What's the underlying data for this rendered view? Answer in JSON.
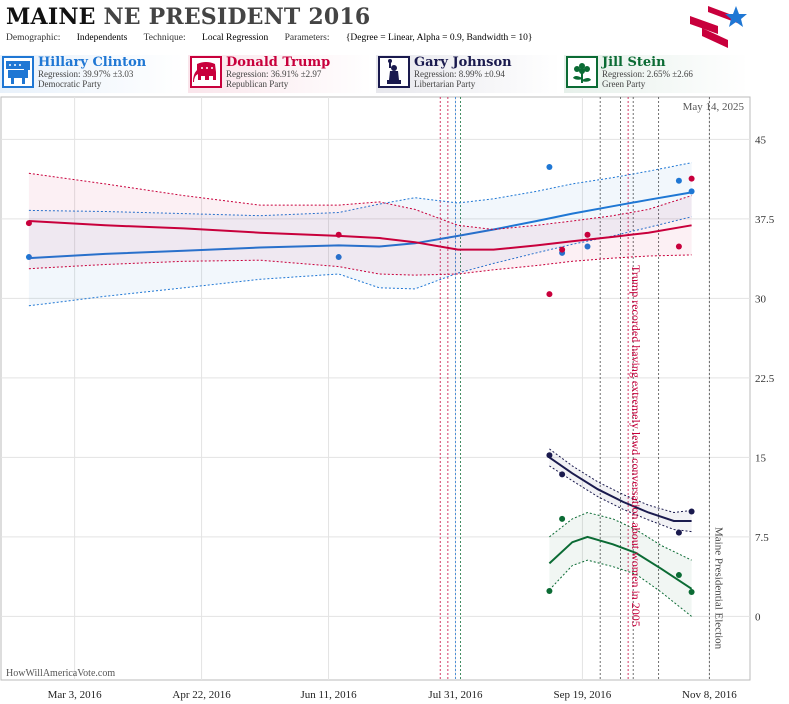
{
  "header": {
    "state": "MAINE",
    "title_rest": "NE PRESIDENT 2016",
    "demographic_label": "Demographic:",
    "demographic": "Independents",
    "technique_label": "Technique:",
    "technique": "Local Regression",
    "parameters_label": "Parameters:",
    "parameters": "{Degree = Linear, Alpha = 0.9, Bandwidth = 10}"
  },
  "candidates": [
    {
      "name": "Hillary Clinton",
      "regression": "Regression: 39.97% ±3.03",
      "party": "Democratic Party",
      "color": "#1f77d4",
      "icon": "donkey-icon"
    },
    {
      "name": "Donald Trump",
      "regression": "Regression: 36.91% ±2.97",
      "party": "Republican Party",
      "color": "#c8003c",
      "icon": "elephant-icon"
    },
    {
      "name": "Gary Johnson",
      "regression": "Regression: 8.99% ±0.94",
      "party": "Libertarian Party",
      "color": "#1a1a4e",
      "icon": "statue-of-liberty-icon"
    },
    {
      "name": "Jill Stein",
      "regression": "Regression: 2.65% ±2.66",
      "party": "Green Party",
      "color": "#0b6b34",
      "icon": "flower-icon"
    }
  ],
  "date_stamp": "May 14, 2025",
  "watermark": "HowWillAmericaVote.com",
  "chart_data": {
    "type": "line",
    "x_ticks": [
      "Mar 3, 2016",
      "Apr 22, 2016",
      "Jun 11, 2016",
      "Jul 31, 2016",
      "Sep 19, 2016",
      "Nov 8, 2016"
    ],
    "x_range": [
      "2016-02-03",
      "2016-11-24"
    ],
    "y_ticks": [
      "0",
      "7.5",
      "15",
      "22.5",
      "30",
      "37.5",
      "45"
    ],
    "ylim": [
      -6,
      49
    ],
    "annotations": [
      {
        "text": "Trump recorded having extremely lewd conversation about women in 2005",
        "date": "2016-10-07",
        "color": "#c8003c"
      },
      {
        "text": "Maine Presidential Election",
        "date": "2016-11-08",
        "color": "#444444"
      }
    ],
    "event_lines": [
      {
        "date": "2016-07-25",
        "color": "#c8003c"
      },
      {
        "date": "2016-07-28",
        "color": "#c8003c"
      },
      {
        "date": "2016-07-31",
        "color": "#1f77d4"
      },
      {
        "date": "2016-08-02",
        "color": "#0b6b34"
      },
      {
        "date": "2016-09-26",
        "color": "#444444"
      },
      {
        "date": "2016-10-04",
        "color": "#444444"
      },
      {
        "date": "2016-10-07",
        "color": "#c8003c"
      },
      {
        "date": "2016-10-09",
        "color": "#444444"
      },
      {
        "date": "2016-10-19",
        "color": "#444444"
      },
      {
        "date": "2016-11-08",
        "color": "#444444"
      }
    ],
    "series": [
      {
        "name": "Hillary Clinton",
        "color": "#1f77d4",
        "x": [
          "2016-02-14",
          "2016-03-15",
          "2016-04-15",
          "2016-05-15",
          "2016-06-15",
          "2016-07-01",
          "2016-07-15",
          "2016-08-01",
          "2016-08-15",
          "2016-09-01",
          "2016-09-15",
          "2016-10-01",
          "2016-10-15",
          "2016-11-01"
        ],
        "fit": [
          33.8,
          34.2,
          34.5,
          34.8,
          35.0,
          34.9,
          35.2,
          35.9,
          36.5,
          37.3,
          38.0,
          38.7,
          39.3,
          40.0
        ],
        "lower": [
          29.3,
          30.2,
          31.0,
          31.8,
          32.3,
          31.0,
          30.9,
          32.4,
          33.3,
          34.3,
          35.1,
          35.9,
          36.7,
          37.7
        ],
        "upper": [
          38.3,
          38.2,
          38.0,
          37.8,
          38.1,
          38.9,
          39.5,
          39.0,
          39.4,
          40.1,
          40.8,
          41.4,
          42.0,
          42.8
        ],
        "points": [
          {
            "x": "2016-02-14",
            "y": 33.9
          },
          {
            "x": "2016-06-15",
            "y": 33.9
          },
          {
            "x": "2016-09-06",
            "y": 42.4
          },
          {
            "x": "2016-09-11",
            "y": 34.3
          },
          {
            "x": "2016-09-21",
            "y": 34.9
          },
          {
            "x": "2016-10-27",
            "y": 41.1
          },
          {
            "x": "2016-11-01",
            "y": 40.1
          }
        ]
      },
      {
        "name": "Donald Trump",
        "color": "#c8003c",
        "x": [
          "2016-02-14",
          "2016-03-15",
          "2016-04-15",
          "2016-05-15",
          "2016-06-15",
          "2016-07-01",
          "2016-07-15",
          "2016-08-01",
          "2016-08-15",
          "2016-09-01",
          "2016-09-15",
          "2016-10-01",
          "2016-10-15",
          "2016-11-01"
        ],
        "fit": [
          37.3,
          36.9,
          36.6,
          36.2,
          35.9,
          35.7,
          35.3,
          34.6,
          34.6,
          35.0,
          35.4,
          35.8,
          36.2,
          36.9
        ],
        "lower": [
          32.8,
          33.2,
          33.5,
          33.6,
          33.0,
          32.3,
          32.2,
          32.3,
          32.7,
          33.1,
          33.5,
          33.8,
          34.0,
          34.1
        ],
        "upper": [
          41.8,
          40.8,
          39.7,
          38.8,
          38.8,
          39.1,
          38.4,
          36.9,
          36.5,
          36.9,
          37.3,
          37.8,
          38.4,
          39.7
        ],
        "points": [
          {
            "x": "2016-02-14",
            "y": 37.1
          },
          {
            "x": "2016-06-15",
            "y": 36.0
          },
          {
            "x": "2016-09-06",
            "y": 30.4
          },
          {
            "x": "2016-09-11",
            "y": 34.6
          },
          {
            "x": "2016-09-21",
            "y": 36.0
          },
          {
            "x": "2016-10-27",
            "y": 34.9
          },
          {
            "x": "2016-11-01",
            "y": 41.3
          }
        ]
      },
      {
        "name": "Gary Johnson",
        "color": "#1a1a4e",
        "x": [
          "2016-09-06",
          "2016-09-15",
          "2016-09-25",
          "2016-10-05",
          "2016-10-15",
          "2016-10-25",
          "2016-11-01"
        ],
        "fit": [
          15.0,
          13.5,
          12.0,
          10.8,
          9.8,
          9.0,
          9.0
        ],
        "lower": [
          14.2,
          12.8,
          11.3,
          10.1,
          9.1,
          8.2,
          8.0
        ],
        "upper": [
          15.8,
          14.2,
          12.7,
          11.5,
          10.5,
          9.8,
          10.0
        ],
        "points": [
          {
            "x": "2016-09-06",
            "y": 15.2
          },
          {
            "x": "2016-09-11",
            "y": 13.4
          },
          {
            "x": "2016-10-27",
            "y": 7.9
          },
          {
            "x": "2016-11-01",
            "y": 9.9
          }
        ]
      },
      {
        "name": "Jill Stein",
        "color": "#0b6b34",
        "x": [
          "2016-09-06",
          "2016-09-15",
          "2016-09-21",
          "2016-10-01",
          "2016-10-10",
          "2016-10-20",
          "2016-11-01"
        ],
        "fit": [
          5.0,
          7.0,
          7.5,
          6.8,
          6.0,
          4.5,
          2.6
        ],
        "lower": [
          2.5,
          4.8,
          5.3,
          4.7,
          4.0,
          2.3,
          0.0
        ],
        "upper": [
          7.5,
          9.2,
          9.8,
          9.2,
          8.2,
          6.7,
          5.3
        ],
        "points": [
          {
            "x": "2016-09-06",
            "y": 2.4
          },
          {
            "x": "2016-09-11",
            "y": 9.2
          },
          {
            "x": "2016-10-27",
            "y": 3.9
          },
          {
            "x": "2016-11-01",
            "y": 2.3
          }
        ]
      }
    ]
  }
}
